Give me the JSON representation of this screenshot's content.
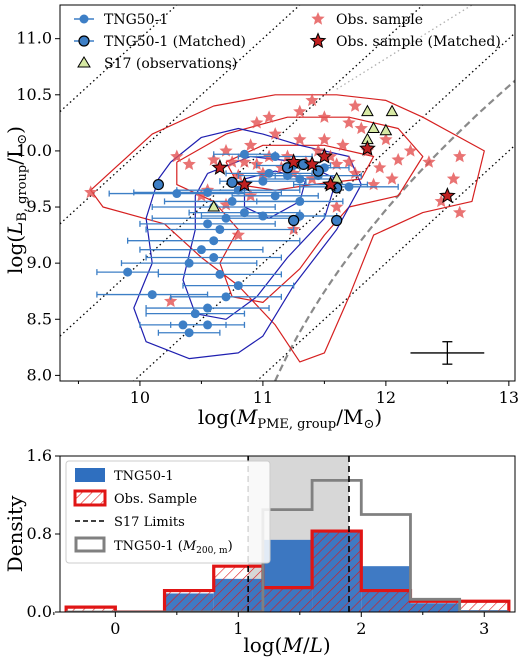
{
  "chart_data": [
    {
      "type": "scatter",
      "xlabel": "log(M_PME,group / M_⊙)",
      "ylabel": "log(L_B,group / L_⊙)",
      "xlim": [
        9.35,
        13.05
      ],
      "ylim": [
        7.95,
        11.3
      ],
      "xticks": [
        "10",
        "11",
        "12",
        "13"
      ],
      "yticks": [
        "8.0",
        "8.5",
        "9.0",
        "9.5",
        "10.0",
        "10.5",
        "11.0"
      ],
      "legend": [
        {
          "key": "tng",
          "label": "TNG50-1"
        },
        {
          "key": "tngm",
          "label": "TNG50-1 (Matched)"
        },
        {
          "key": "s17",
          "label": "S17 (observations)"
        },
        {
          "key": "obs",
          "label": "Obs. sample"
        },
        {
          "key": "obsm",
          "label": "Obs. sample (Matched)"
        }
      ],
      "colors": {
        "tng": "#3d7fc6",
        "obs": "#e35050",
        "s17": "#d7e9a4",
        "dotted": "#000000",
        "dashed": "#8a8a8a",
        "contour_blue": "#1f1fb0",
        "contour_red": "#d62020"
      },
      "ml_lines": [
        -1,
        0,
        1,
        2,
        3
      ],
      "tng_points": [
        [
          10.3,
          9.62,
          0.55
        ],
        [
          10.55,
          9.63,
          0.6
        ],
        [
          10.8,
          9.65,
          0.5
        ],
        [
          11.0,
          9.73,
          0.35
        ],
        [
          11.05,
          9.8,
          0.35
        ],
        [
          11.2,
          9.78,
          0.4
        ],
        [
          11.3,
          9.75,
          0.3
        ],
        [
          11.45,
          9.78,
          0.35
        ],
        [
          11.25,
          9.87,
          0.3
        ],
        [
          11.1,
          9.95,
          0.3
        ],
        [
          10.85,
          9.97,
          0.25
        ],
        [
          11.5,
          9.85,
          0.2
        ],
        [
          11.55,
          9.7,
          0.3
        ],
        [
          11.7,
          9.68,
          0.4
        ],
        [
          11.1,
          9.6,
          0.35
        ],
        [
          11.3,
          9.55,
          0.35
        ],
        [
          10.75,
          9.55,
          0.55
        ],
        [
          10.6,
          9.5,
          0.5
        ],
        [
          10.7,
          9.4,
          0.6
        ],
        [
          10.85,
          9.45,
          0.45
        ],
        [
          11.0,
          9.42,
          0.5
        ],
        [
          11.3,
          9.42,
          0.3
        ],
        [
          10.55,
          9.35,
          0.55
        ],
        [
          10.65,
          9.3,
          0.6
        ],
        [
          10.6,
          9.2,
          0.7
        ],
        [
          10.5,
          9.12,
          0.5
        ],
        [
          10.6,
          9.05,
          0.55
        ],
        [
          10.4,
          9.0,
          0.55
        ],
        [
          10.65,
          8.9,
          0.5
        ],
        [
          10.8,
          8.8,
          0.45
        ],
        [
          10.7,
          8.7,
          0.45
        ],
        [
          10.55,
          8.6,
          0.5
        ],
        [
          10.45,
          8.55,
          0.4
        ],
        [
          10.35,
          8.45,
          0.35
        ],
        [
          10.55,
          8.45,
          0.3
        ],
        [
          10.4,
          8.38,
          0.25
        ],
        [
          9.9,
          8.92,
          0.25
        ],
        [
          10.1,
          8.72,
          0.45
        ]
      ],
      "tng_matched": [
        [
          10.15,
          9.7
        ],
        [
          10.75,
          9.72
        ],
        [
          11.25,
          9.38
        ],
        [
          11.6,
          9.38
        ],
        [
          11.33,
          9.88
        ],
        [
          11.45,
          9.82
        ],
        [
          11.6,
          9.67
        ],
        [
          11.2,
          9.85
        ]
      ],
      "s17_points": [
        [
          10.6,
          9.5
        ],
        [
          11.55,
          9.7
        ],
        [
          11.6,
          9.75
        ],
        [
          11.85,
          10.1
        ],
        [
          11.9,
          10.2
        ],
        [
          11.85,
          10.35
        ],
        [
          12.05,
          10.35
        ],
        [
          12.0,
          10.18
        ]
      ],
      "obs_points": [
        [
          9.6,
          9.63
        ],
        [
          10.3,
          9.95
        ],
        [
          10.4,
          9.88
        ],
        [
          10.55,
          9.65
        ],
        [
          10.6,
          9.92
        ],
        [
          10.7,
          10.0
        ],
        [
          10.75,
          9.9
        ],
        [
          10.8,
          9.78
        ],
        [
          10.85,
          9.9
        ],
        [
          10.9,
          10.05
        ],
        [
          10.95,
          9.88
        ],
        [
          11.0,
          9.8
        ],
        [
          11.05,
          9.95
        ],
        [
          11.1,
          10.15
        ],
        [
          11.15,
          9.85
        ],
        [
          11.2,
          9.95
        ],
        [
          11.25,
          9.8
        ],
        [
          11.3,
          10.1
        ],
        [
          11.35,
          9.9
        ],
        [
          11.4,
          9.75
        ],
        [
          11.45,
          10.0
        ],
        [
          11.5,
          10.1
        ],
        [
          11.55,
          9.95
        ],
        [
          11.6,
          9.88
        ],
        [
          11.65,
          10.05
        ],
        [
          11.7,
          9.9
        ],
        [
          11.75,
          9.8
        ],
        [
          11.85,
          10.0
        ],
        [
          11.9,
          9.7
        ],
        [
          11.95,
          9.85
        ],
        [
          12.05,
          9.75
        ],
        [
          12.1,
          9.92
        ],
        [
          12.2,
          10.0
        ],
        [
          12.35,
          9.9
        ],
        [
          12.45,
          9.55
        ],
        [
          12.55,
          9.75
        ],
        [
          12.6,
          9.45
        ],
        [
          12.6,
          9.95
        ],
        [
          11.3,
          10.35
        ],
        [
          11.5,
          10.3
        ],
        [
          11.7,
          10.25
        ],
        [
          10.95,
          10.25
        ],
        [
          10.9,
          9.6
        ],
        [
          10.7,
          9.52
        ],
        [
          11.05,
          10.3
        ],
        [
          11.8,
          10.2
        ],
        [
          12.0,
          10.1
        ],
        [
          11.6,
          9.5
        ],
        [
          10.25,
          8.66
        ],
        [
          10.8,
          9.25
        ],
        [
          11.25,
          9.3
        ],
        [
          10.5,
          9.6
        ],
        [
          11.4,
          10.45
        ],
        [
          11.75,
          10.4
        ]
      ],
      "obs_matched": [
        [
          10.65,
          9.85
        ],
        [
          10.85,
          9.7
        ],
        [
          11.25,
          9.9
        ],
        [
          11.4,
          9.88
        ],
        [
          11.5,
          9.95
        ],
        [
          11.55,
          9.7
        ],
        [
          11.85,
          10.02
        ],
        [
          12.5,
          9.6
        ]
      ],
      "error_bar": {
        "x": 12.5,
        "y": 8.2,
        "xerr": 0.3,
        "yerr": 0.1
      }
    },
    {
      "type": "bar",
      "xlabel": "log(M/L)",
      "ylabel": "Density",
      "xlim": [
        -0.45,
        3.25
      ],
      "ylim": [
        0,
        1.6
      ],
      "xticks": [
        "0",
        "1",
        "2",
        "3"
      ],
      "yticks": [
        "0.0",
        "0.8",
        "1.6"
      ],
      "bin_edges": [
        -0.4,
        0.0,
        0.4,
        0.8,
        1.2,
        1.6,
        2.0,
        2.4,
        2.8,
        3.2
      ],
      "s17_limits": [
        1.08,
        1.9
      ],
      "colors": {
        "tng": "#2f6fbf",
        "obs": "#e01515",
        "tng200": "#808080",
        "limits_fill": "#d3d3d3"
      },
      "legend": [
        {
          "key": "tng",
          "label": "TNG50-1"
        },
        {
          "key": "obs",
          "label": "Obs. Sample"
        },
        {
          "key": "lim",
          "label": "S17 Limits"
        },
        {
          "key": "tng200",
          "label": "TNG50-1 (M_200,m)"
        }
      ],
      "series": [
        {
          "key": "tng",
          "values": [
            0.0,
            0.0,
            0.19,
            0.34,
            0.74,
            0.83,
            0.47,
            0.09,
            0.02
          ]
        },
        {
          "key": "obs",
          "values": [
            0.05,
            0.0,
            0.22,
            0.47,
            0.25,
            0.83,
            0.22,
            0.11,
            0.11
          ]
        },
        {
          "key": "tng200",
          "values": [
            0.0,
            0.0,
            0.0,
            0.0,
            1.05,
            1.35,
            1.0,
            0.13,
            0.0
          ]
        }
      ]
    }
  ]
}
